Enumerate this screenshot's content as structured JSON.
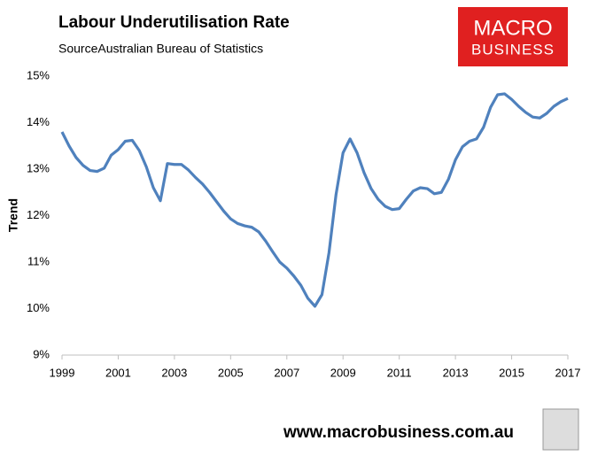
{
  "chart_data": {
    "type": "line",
    "title": "Labour Underutilisation Rate",
    "subtitle": "SourceAustralian Bureau of Statistics",
    "y_label": "Trend",
    "logo": [
      "MACRO",
      "BUSINESS"
    ],
    "footer": "www.macrobusiness.com.au",
    "x": [
      1999,
      1999.25,
      1999.5,
      1999.75,
      2000,
      2000.25,
      2000.5,
      2000.75,
      2001,
      2001.25,
      2001.5,
      2001.75,
      2002,
      2002.25,
      2002.5,
      2002.75,
      2003,
      2003.25,
      2003.5,
      2003.75,
      2004,
      2004.25,
      2004.5,
      2004.75,
      2005,
      2005.25,
      2005.5,
      2005.75,
      2006,
      2006.25,
      2006.5,
      2006.75,
      2007,
      2007.25,
      2007.5,
      2007.75,
      2008,
      2008.25,
      2008.5,
      2008.75,
      2009,
      2009.25,
      2009.5,
      2009.75,
      2010,
      2010.25,
      2010.5,
      2010.75,
      2011,
      2011.25,
      2011.5,
      2011.75,
      2012,
      2012.25,
      2012.5,
      2012.75,
      2013,
      2013.25,
      2013.5,
      2013.75,
      2014,
      2014.25,
      2014.5,
      2014.75,
      2015,
      2015.25,
      2015.5,
      2015.75,
      2016,
      2016.25,
      2016.5,
      2016.75,
      2017
    ],
    "series": [
      {
        "name": "Trend",
        "color": "#4f81bd",
        "values": [
          13.8,
          13.5,
          13.25,
          13.08,
          12.97,
          12.95,
          13.02,
          13.3,
          13.42,
          13.6,
          13.62,
          13.4,
          13.05,
          12.6,
          12.32,
          13.12,
          13.1,
          13.1,
          12.98,
          12.82,
          12.68,
          12.5,
          12.3,
          12.1,
          11.93,
          11.83,
          11.78,
          11.75,
          11.65,
          11.45,
          11.22,
          11.0,
          10.87,
          10.7,
          10.5,
          10.22,
          10.05,
          10.3,
          11.2,
          12.45,
          13.35,
          13.65,
          13.35,
          12.92,
          12.58,
          12.35,
          12.2,
          12.13,
          12.15,
          12.35,
          12.53,
          12.6,
          12.58,
          12.47,
          12.5,
          12.78,
          13.2,
          13.48,
          13.6,
          13.65,
          13.9,
          14.33,
          14.6,
          14.62,
          14.5,
          14.35,
          14.22,
          14.12,
          14.1,
          14.2,
          14.35,
          14.45,
          14.52
        ]
      }
    ],
    "xlim": [
      1999,
      2017
    ],
    "xticks": [
      1999,
      2001,
      2003,
      2005,
      2007,
      2009,
      2011,
      2013,
      2015,
      2017
    ],
    "ylim": [
      9,
      15
    ],
    "yticks": [
      {
        "value": 9,
        "label": "9%"
      },
      {
        "value": 10,
        "label": "10%"
      },
      {
        "value": 11,
        "label": "11%"
      },
      {
        "value": 12,
        "label": "12%"
      },
      {
        "value": 13,
        "label": "13%"
      },
      {
        "value": 14,
        "label": "14%"
      },
      {
        "value": 15,
        "label": "15%"
      }
    ],
    "grid": false
  }
}
